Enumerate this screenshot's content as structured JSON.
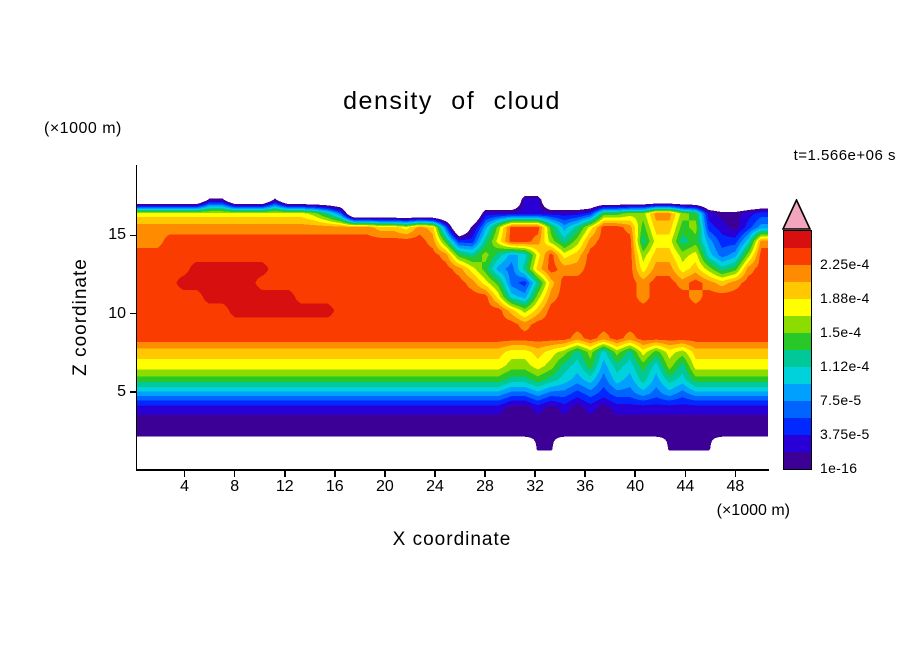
{
  "title": "density of cloud",
  "timestamp": "t=1.566e+06 s",
  "axes": {
    "x_label": "X coordinate",
    "x_unit": "(×1000 m)",
    "y_label": "Z coordinate",
    "y_unit": "(×1000 m)",
    "x_ticks": [
      4,
      8,
      12,
      16,
      20,
      24,
      28,
      32,
      36,
      40,
      44,
      48
    ],
    "y_ticks": [
      5,
      10,
      15
    ],
    "x_range": [
      0.2,
      50.6
    ],
    "y_range": [
      0,
      19.5
    ]
  },
  "colorbar": {
    "labels_top_to_bottom": [
      "2.25e-4",
      "1.88e-4",
      "1.5e-4",
      "1.12e-4",
      "7.5e-5",
      "3.75e-5",
      "1e-16"
    ],
    "over_color": "#f2a5bc",
    "band_colors_bottom_to_top": [
      "#3c0096",
      "#2800d7",
      "#0028ff",
      "#0064ff",
      "#00a0ff",
      "#00d2dc",
      "#00c896",
      "#28c828",
      "#8cdc00",
      "#ffff00",
      "#ffc800",
      "#ff8c00",
      "#fa3c00",
      "#d70f0f"
    ]
  },
  "chart_data": {
    "type": "heatmap",
    "title": "density of cloud",
    "xlabel": "X coordinate (×1000 m)",
    "ylabel": "Z coordinate (×1000 m)",
    "time_label": "t=1.566e+06 s",
    "x_range": [
      0.2,
      50.6
    ],
    "z_range": [
      0,
      19.5
    ],
    "levels": [
      1e-16,
      1.875e-05,
      3.75e-05,
      5.625e-05,
      7.5e-05,
      9.375e-05,
      0.0001125,
      0.00013125,
      0.00015,
      0.00016875,
      0.0001875,
      0.00020625,
      0.000225,
      0.00024375
    ],
    "palette": [
      "#3c0096",
      "#2800d7",
      "#0028ff",
      "#0064ff",
      "#00a0ff",
      "#00d2dc",
      "#00c896",
      "#28c828",
      "#8cdc00",
      "#ffff00",
      "#ffc800",
      "#ff8c00",
      "#fa3c00",
      "#d70f0f"
    ],
    "over_color": "#f2a5bc",
    "grid": {
      "description": "Coarse 48x22 approximation of the contour field. Each char is a level index (hex 0-d into palette), '.' = no cloud (white). Rows top (z~19) to bottom (z~0), cols left (x~1) to right (x~50).",
      "rows": [
        "................................................",
        "................................................",
        ".....00...0..................11.................",
        "9999999999999863..........1111111127788bb8710012",
        "bbbbbbbbbbbbbbbbbbaa9ba3.048ccc7469ccb7aa7821024",
        "bbccccccccccccccccccccb72269ccb868bccc699674225b",
        "cccccccccccccccccccccccb7686459c9acccc8aa895348c",
        "ccccddddddccccccccccccccb97436acbbcccc9bb9a867bc",
        "cccddddddccccccccccccccccb97326accccccbccbcbabcc",
        "cccccdddddddccccccccccccccc9548bccccccbcccbccccc",
        "cccccccddddddddccccccccccccca8accccccccccccccccc",
        "cccccccccccccccccccccccccccccbcccccccccccccccccc",
        "cccccccccccccccccccccccccccccccccbcbcbcccccccccc",
        "aaaaaaaaaaaaaaaaaaaaaaaaaaaa99a98685869798aaaaaa",
        "999999999999999999999999999988986574657586999999",
        "777777777777777777777777777766765453546465777777",
        "444444444444444444444444444433433232334343444444",
        "111111111111111111111111111100101010111111111111",
        "000000000000000000000000000000000000000000000000",
        "000000000000000000000000000000000000000000000000",
        "..............................00........0000....",
        "................................................"
      ]
    }
  }
}
